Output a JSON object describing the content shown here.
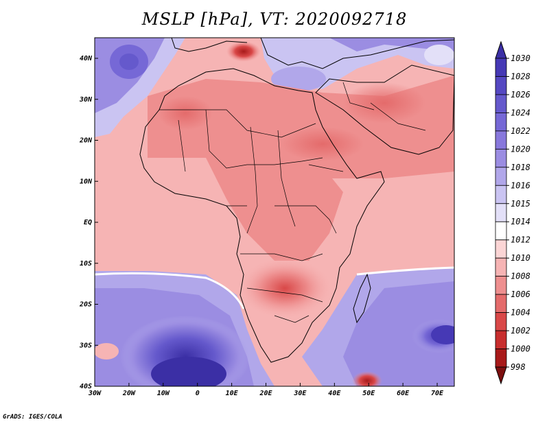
{
  "figure": {
    "title": "MSLP [hPa], VT: 2020092718",
    "credit": "GrADS: IGES/COLA"
  },
  "map": {
    "region": "Africa",
    "lon_ticks": [
      "30W",
      "20W",
      "10W",
      "0",
      "10E",
      "20E",
      "30E",
      "40E",
      "50E",
      "60E",
      "70E"
    ],
    "lat_ticks": [
      "40N",
      "30N",
      "20N",
      "10N",
      "EQ",
      "10S",
      "20S",
      "30S",
      "40S"
    ]
  },
  "colorbar": {
    "unit": "hPa",
    "levels": [
      "1030",
      "1028",
      "1026",
      "1024",
      "1022",
      "1020",
      "1018",
      "1016",
      "1015",
      "1014",
      "1012",
      "1010",
      "1008",
      "1006",
      "1004",
      "1002",
      "1000",
      "998"
    ],
    "colors": [
      "#3b2fa5",
      "#4639b5",
      "#5548c2",
      "#6559cc",
      "#7668d6",
      "#8878dc",
      "#9b8de2",
      "#b1a7ea",
      "#cac4f2",
      "#e3e0f8",
      "#ffffff",
      "#fbd5d5",
      "#f6b4b4",
      "#ee8f8f",
      "#e46b6b",
      "#d94848",
      "#c82e2e",
      "#a81a1a",
      "#7c0f0f"
    ]
  },
  "colors": {
    "high_pressure": "#4639b5",
    "low_pressure": "#c82e2e",
    "neutral": "#ffffff",
    "border_lines": "#000000"
  }
}
